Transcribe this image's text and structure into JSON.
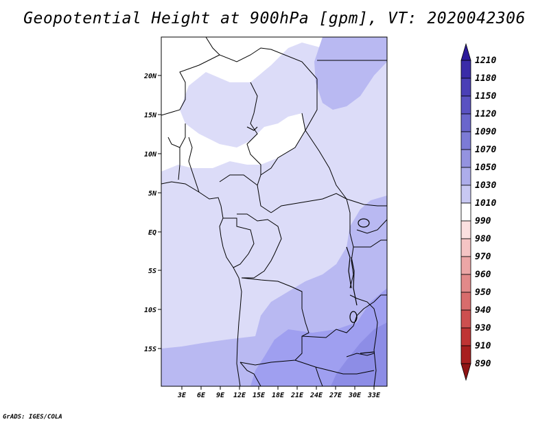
{
  "title": "Geopotential Height at 900hPa [gpm], VT: 2020042306",
  "footer": "GrADS: IGES/COLA",
  "map": {
    "lon_ticks": [
      "3E",
      "6E",
      "9E",
      "12E",
      "15E",
      "18E",
      "21E",
      "24E",
      "27E",
      "30E",
      "33E"
    ],
    "lat_ticks": [
      "20N",
      "15N",
      "10N",
      "5N",
      "EQ",
      "5S",
      "10S",
      "15S"
    ]
  },
  "colorbar": {
    "levels": [
      "1210",
      "1180",
      "1150",
      "1120",
      "1090",
      "1070",
      "1050",
      "1030",
      "1010",
      "990",
      "980",
      "970",
      "960",
      "950",
      "940",
      "930",
      "910",
      "890"
    ],
    "colors": [
      "#2c1a9a",
      "#3a2ca8",
      "#4a3fb6",
      "#5a52c2",
      "#6a66cc",
      "#7c7bd6",
      "#9493e0",
      "#adadea",
      "#c8c8f2",
      "#ffffff",
      "#fbe0e0",
      "#f5c4c4",
      "#eca6a6",
      "#e28989",
      "#d86c6c",
      "#cd4f4f",
      "#bf3434",
      "#a81f1f",
      "#8f1414"
    ]
  }
}
